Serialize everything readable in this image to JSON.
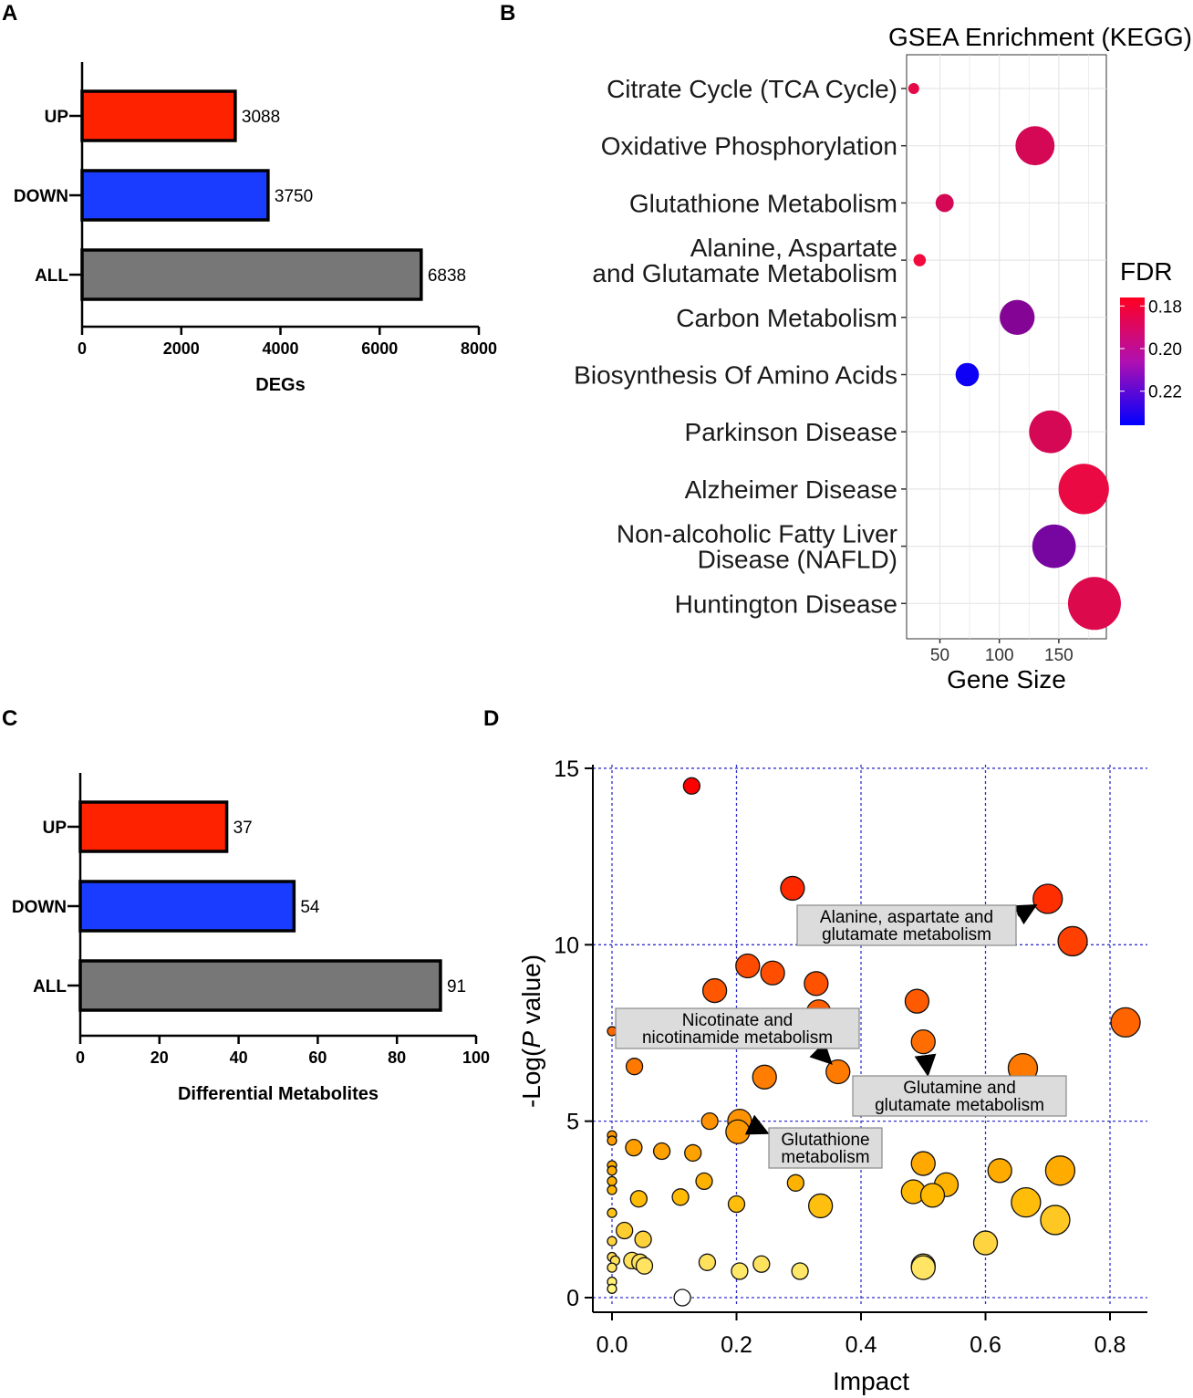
{
  "panels": {
    "a": "A",
    "b": "B",
    "c": "C",
    "d": "D"
  },
  "colors": {
    "up": "#ff2200",
    "down": "#1a3cff",
    "all": "#777777",
    "grid_d": "#3333cc",
    "grid_b": "#e6e6e6",
    "fdr_low": "#ff0022",
    "fdr_high": "#0000ff"
  },
  "chart_data": [
    {
      "id": "A",
      "type": "bar",
      "orientation": "horizontal",
      "categories": [
        "UP",
        "DOWN",
        "ALL"
      ],
      "values": [
        3088,
        3750,
        6838
      ],
      "value_labels": [
        "3088",
        "3750",
        "6838"
      ],
      "xlabel": "DEGs",
      "xlim": [
        0,
        8000
      ],
      "xticks": [
        "0",
        "2000",
        "4000",
        "6000",
        "8000"
      ]
    },
    {
      "id": "B",
      "type": "scatter",
      "title": "GSEA Enrichment (KEGG)",
      "xlabel": "Gene Size",
      "xticks": [
        "50",
        "100",
        "150"
      ],
      "xlim": [
        22,
        190
      ],
      "legend_title": "FDR",
      "legend_ticks": [
        "0.18",
        "0.20",
        "0.22"
      ],
      "points": [
        {
          "label": [
            "Citrate Cycle (TCA Cycle)"
          ],
          "gene_size": 28,
          "fdr": 0.182
        },
        {
          "label": [
            "Oxidative Phosphorylation"
          ],
          "gene_size": 130,
          "fdr": 0.186
        },
        {
          "label": [
            "Glutathione Metabolism"
          ],
          "gene_size": 54,
          "fdr": 0.186
        },
        {
          "label": [
            "Alanine, Aspartate",
            "and Glutamate Metabolism"
          ],
          "gene_size": 33,
          "fdr": 0.179
        },
        {
          "label": [
            "Carbon Metabolism"
          ],
          "gene_size": 115,
          "fdr": 0.205
        },
        {
          "label": [
            "Biosynthesis Of Amino Acids"
          ],
          "gene_size": 73,
          "fdr": 0.233
        },
        {
          "label": [
            "Parkinson Disease"
          ],
          "gene_size": 143,
          "fdr": 0.186
        },
        {
          "label": [
            "Alzheimer Disease"
          ],
          "gene_size": 171,
          "fdr": 0.181
        },
        {
          "label": [
            "Non-alcoholic Fatty Liver",
            "Disease (NAFLD)"
          ],
          "gene_size": 146,
          "fdr": 0.208
        },
        {
          "label": [
            "Huntington Disease"
          ],
          "gene_size": 180,
          "fdr": 0.184
        }
      ]
    },
    {
      "id": "C",
      "type": "bar",
      "orientation": "horizontal",
      "categories": [
        "UP",
        "DOWN",
        "ALL"
      ],
      "values": [
        37,
        54,
        91
      ],
      "value_labels": [
        "37",
        "54",
        "91"
      ],
      "xlabel": "Differential Metabolites",
      "xlim": [
        0,
        100
      ],
      "xticks": [
        "0",
        "20",
        "40",
        "60",
        "80",
        "100"
      ]
    },
    {
      "id": "D",
      "type": "scatter",
      "xlabel": "Impact",
      "ylabel": [
        "-Log(",
        "P",
        " value)"
      ],
      "xlim": [
        -0.03,
        0.86
      ],
      "ylim": [
        -0.4,
        15.5
      ],
      "xticks": [
        "0.0",
        "0.2",
        "0.4",
        "0.6",
        "0.8"
      ],
      "yticks": [
        "0",
        "5",
        "10",
        "15"
      ],
      "points": [
        [
          0.128,
          14.5,
          1
        ],
        [
          0.29,
          11.6,
          2
        ],
        [
          0.7,
          11.3,
          3
        ],
        [
          0.74,
          10.1,
          3
        ],
        [
          0.218,
          9.4,
          2
        ],
        [
          0.258,
          9.2,
          2
        ],
        [
          0.165,
          8.7,
          2
        ],
        [
          0.328,
          8.9,
          2
        ],
        [
          0.49,
          8.4,
          2
        ],
        [
          0.332,
          8.1,
          2
        ],
        [
          0.825,
          7.8,
          3
        ],
        [
          0.0,
          7.55,
          0
        ],
        [
          0.5,
          7.25,
          2
        ],
        [
          0.036,
          6.55,
          1
        ],
        [
          0.363,
          6.4,
          2
        ],
        [
          0.66,
          6.5,
          3
        ],
        [
          0.245,
          6.25,
          2
        ],
        [
          0.157,
          5.0,
          1
        ],
        [
          0.205,
          5.0,
          2
        ],
        [
          0.202,
          4.7,
          2
        ],
        [
          0.0,
          4.6,
          0
        ],
        [
          0.0,
          4.45,
          0
        ],
        [
          0.035,
          4.25,
          1
        ],
        [
          0.08,
          4.15,
          1
        ],
        [
          0.13,
          4.1,
          1
        ],
        [
          0.0,
          3.75,
          0
        ],
        [
          0.0,
          3.6,
          0
        ],
        [
          0.0,
          3.3,
          0
        ],
        [
          0.0,
          3.05,
          0
        ],
        [
          0.5,
          3.8,
          2
        ],
        [
          0.623,
          3.6,
          2
        ],
        [
          0.72,
          3.6,
          3
        ],
        [
          0.537,
          3.2,
          2
        ],
        [
          0.484,
          3.0,
          2
        ],
        [
          0.515,
          2.9,
          2
        ],
        [
          0.148,
          3.3,
          1
        ],
        [
          0.295,
          3.25,
          1
        ],
        [
          0.11,
          2.85,
          1
        ],
        [
          0.043,
          2.8,
          1
        ],
        [
          0.2,
          2.65,
          1
        ],
        [
          0.335,
          2.6,
          2
        ],
        [
          0.665,
          2.7,
          3
        ],
        [
          0.712,
          2.2,
          3
        ],
        [
          0.0,
          2.4,
          0
        ],
        [
          0.02,
          1.9,
          1
        ],
        [
          0.05,
          1.65,
          1
        ],
        [
          0.0,
          1.6,
          0
        ],
        [
          0.6,
          1.55,
          2
        ],
        [
          0.0,
          1.15,
          0
        ],
        [
          0.005,
          1.05,
          0
        ],
        [
          0.032,
          1.05,
          1
        ],
        [
          0.045,
          1.0,
          1
        ],
        [
          0.052,
          0.9,
          1
        ],
        [
          0.153,
          1.0,
          1
        ],
        [
          0.24,
          0.95,
          1
        ],
        [
          0.205,
          0.75,
          1
        ],
        [
          0.302,
          0.75,
          1
        ],
        [
          0.5,
          0.9,
          2
        ],
        [
          0.5,
          0.85,
          2
        ],
        [
          0.0,
          0.85,
          0
        ],
        [
          0.0,
          0.45,
          0
        ],
        [
          0.0,
          0.25,
          0
        ],
        [
          0.113,
          0.0,
          1
        ]
      ],
      "annotations": [
        {
          "lines": [
            "Alanine, aspartate and",
            "glutamate metabolism"
          ]
        },
        {
          "lines": [
            "Nicotinate and",
            "nicotinamide metabolism"
          ]
        },
        {
          "lines": [
            "Glutamine and",
            "glutamate metabolism"
          ]
        },
        {
          "lines": [
            "Glutathione",
            "metabolism"
          ]
        }
      ]
    }
  ]
}
